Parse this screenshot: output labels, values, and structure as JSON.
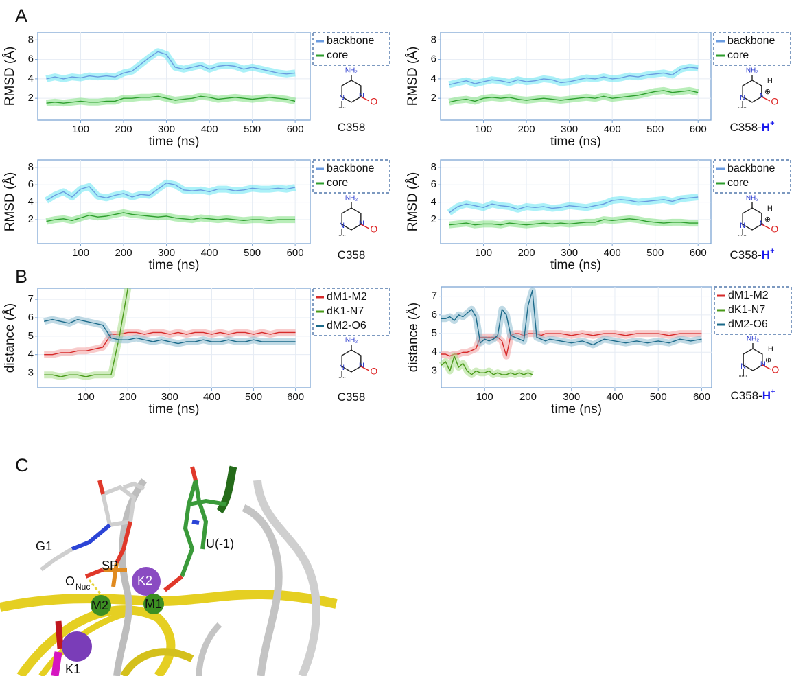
{
  "panels": [
    "A",
    "B"
  ],
  "chart_data": [
    {
      "type": "line",
      "ylabel": "RMSD (Å)",
      "xlabel": "time (ns)",
      "xlim": [
        0,
        635
      ],
      "ylim": [
        -0.25,
        8.8
      ],
      "xticks": [
        100,
        200,
        300,
        400,
        500,
        600
      ],
      "yticks": [
        2,
        4,
        6,
        8
      ],
      "grid": true,
      "structure_label": "C358",
      "amine": "NH₂",
      "nitrogen": "N",
      "oxygen": "O",
      "x": [
        20,
        40,
        60,
        80,
        100,
        120,
        140,
        160,
        180,
        200,
        220,
        240,
        260,
        280,
        300,
        320,
        340,
        360,
        380,
        400,
        420,
        440,
        460,
        480,
        500,
        520,
        540,
        560,
        580,
        600
      ],
      "series": [
        {
          "name": "backbone",
          "color": "#6a9be0",
          "band_color": "#66e6f2",
          "values": [
            4.0,
            4.2,
            4.0,
            4.2,
            4.1,
            4.3,
            4.2,
            4.3,
            4.2,
            4.6,
            4.8,
            5.5,
            6.2,
            6.8,
            6.5,
            5.2,
            5.0,
            5.2,
            5.4,
            5.0,
            5.3,
            5.4,
            5.3,
            5.0,
            5.2,
            5.0,
            4.8,
            4.6,
            4.5,
            4.6
          ]
        },
        {
          "name": "core",
          "color": "#2e9e2e",
          "band_color": "#7fe07f",
          "values": [
            1.5,
            1.6,
            1.5,
            1.6,
            1.7,
            1.6,
            1.6,
            1.7,
            1.7,
            2.0,
            2.0,
            2.1,
            2.1,
            2.2,
            2.0,
            1.8,
            1.9,
            2.0,
            2.2,
            2.1,
            1.9,
            2.0,
            2.1,
            2.0,
            1.9,
            2.0,
            2.1,
            2.0,
            1.9,
            1.7
          ]
        }
      ]
    },
    {
      "type": "line",
      "ylabel": "RMSD (Å)",
      "xlabel": "time (ns)",
      "xlim": [
        0,
        630
      ],
      "ylim": [
        -0.25,
        8.8
      ],
      "xticks": [
        100,
        200,
        300,
        400,
        500,
        600
      ],
      "yticks": [
        2,
        4,
        6,
        8
      ],
      "grid": true,
      "structure_label": "C358-",
      "protonation": "H",
      "protonation_sup": "+",
      "amine": "NH₂",
      "nitrogen": "N",
      "oxygen": "O",
      "proton": "H",
      "charge": "⊕",
      "x": [
        20,
        40,
        60,
        80,
        100,
        120,
        140,
        160,
        180,
        200,
        220,
        240,
        260,
        280,
        300,
        320,
        340,
        360,
        380,
        400,
        420,
        440,
        460,
        480,
        500,
        520,
        540,
        560,
        580,
        600
      ],
      "series": [
        {
          "name": "backbone",
          "color": "#6a9be0",
          "band_color": "#66e6f2",
          "values": [
            3.4,
            3.6,
            3.8,
            3.5,
            3.7,
            3.9,
            3.8,
            3.6,
            3.9,
            3.7,
            3.8,
            4.0,
            3.9,
            3.6,
            3.7,
            3.9,
            4.1,
            4.0,
            4.2,
            4.0,
            4.1,
            4.3,
            4.2,
            4.4,
            4.5,
            4.6,
            4.4,
            5.0,
            5.2,
            5.1
          ]
        },
        {
          "name": "core",
          "color": "#2e9e2e",
          "band_color": "#7fe07f",
          "values": [
            1.6,
            1.8,
            1.9,
            1.7,
            2.0,
            2.1,
            2.0,
            2.1,
            1.9,
            1.8,
            1.9,
            2.0,
            1.9,
            1.8,
            1.9,
            2.0,
            2.1,
            2.0,
            2.2,
            2.0,
            2.1,
            2.2,
            2.3,
            2.5,
            2.7,
            2.8,
            2.6,
            2.7,
            2.8,
            2.6
          ]
        }
      ]
    },
    {
      "type": "line",
      "ylabel": "RMSD (Å)",
      "xlabel": "time (ns)",
      "xlim": [
        0,
        635
      ],
      "ylim": [
        -0.75,
        8.85
      ],
      "xticks": [
        100,
        200,
        300,
        400,
        500,
        600
      ],
      "yticks": [
        2,
        4,
        6,
        8
      ],
      "grid": true,
      "structure_label": "C358",
      "amine": "NH₂",
      "nitrogen": "N",
      "oxygen": "O",
      "x": [
        20,
        40,
        60,
        80,
        100,
        120,
        140,
        160,
        180,
        200,
        220,
        240,
        260,
        280,
        300,
        320,
        340,
        360,
        380,
        400,
        420,
        440,
        460,
        480,
        500,
        520,
        540,
        560,
        580,
        600
      ],
      "series": [
        {
          "name": "backbone",
          "color": "#6a9be0",
          "band_color": "#66e6f2",
          "values": [
            4.2,
            4.8,
            5.2,
            4.6,
            5.5,
            5.8,
            4.7,
            4.5,
            4.8,
            5.0,
            4.6,
            4.9,
            4.8,
            5.5,
            6.2,
            6.0,
            5.4,
            5.3,
            5.4,
            5.2,
            5.5,
            5.5,
            5.3,
            5.4,
            5.6,
            5.5,
            5.5,
            5.6,
            5.5,
            5.7
          ]
        },
        {
          "name": "core",
          "color": "#2e9e2e",
          "band_color": "#7fe07f",
          "values": [
            1.8,
            2.0,
            2.1,
            1.9,
            2.2,
            2.5,
            2.3,
            2.4,
            2.6,
            2.8,
            2.6,
            2.5,
            2.4,
            2.3,
            2.4,
            2.2,
            2.1,
            2.0,
            2.2,
            2.1,
            2.0,
            2.1,
            2.0,
            1.9,
            2.0,
            2.0,
            1.9,
            2.0,
            2.0,
            2.0
          ]
        }
      ]
    },
    {
      "type": "line",
      "ylabel": "RMSD (Å)",
      "xlabel": "time (ns)",
      "xlim": [
        0,
        630
      ],
      "ylim": [
        -0.75,
        8.85
      ],
      "xticks": [
        100,
        200,
        300,
        400,
        500,
        600
      ],
      "yticks": [
        2,
        4,
        6,
        8
      ],
      "grid": true,
      "structure_label": "C358-",
      "protonation": "H",
      "protonation_sup": "+",
      "amine": "NH₂",
      "nitrogen": "N",
      "oxygen": "O",
      "proton": "H",
      "charge": "⊕",
      "x": [
        20,
        40,
        60,
        80,
        100,
        120,
        140,
        160,
        180,
        200,
        220,
        240,
        260,
        280,
        300,
        320,
        340,
        360,
        380,
        400,
        420,
        440,
        460,
        480,
        500,
        520,
        540,
        560,
        580,
        600
      ],
      "series": [
        {
          "name": "backbone",
          "color": "#6a9be0",
          "band_color": "#66e6f2",
          "values": [
            2.8,
            3.5,
            3.8,
            3.6,
            3.4,
            3.8,
            3.6,
            3.5,
            3.2,
            3.5,
            3.4,
            3.5,
            3.3,
            3.4,
            3.6,
            3.5,
            3.4,
            3.6,
            3.8,
            4.2,
            4.3,
            4.2,
            4.0,
            4.1,
            4.2,
            4.3,
            4.1,
            4.4,
            4.5,
            4.6
          ]
        },
        {
          "name": "core",
          "color": "#2e9e2e",
          "band_color": "#7fe07f",
          "values": [
            1.4,
            1.5,
            1.6,
            1.4,
            1.5,
            1.5,
            1.4,
            1.6,
            1.5,
            1.4,
            1.5,
            1.6,
            1.5,
            1.6,
            1.5,
            1.6,
            1.7,
            1.7,
            2.0,
            1.9,
            2.0,
            2.1,
            2.0,
            1.8,
            1.7,
            1.6,
            1.7,
            1.7,
            1.6,
            1.6
          ]
        }
      ]
    },
    {
      "type": "line",
      "ylabel": "distance (Å)",
      "xlabel": "time (ns)",
      "xlim": [
        -15,
        635
      ],
      "ylim": [
        2.2,
        7.6
      ],
      "xticks": [
        100,
        200,
        300,
        400,
        500,
        600
      ],
      "yticks": [
        3,
        4,
        5,
        6,
        7
      ],
      "grid": true,
      "structure_label": "C358",
      "amine": "NH₂",
      "nitrogen": "N",
      "oxygen": "O",
      "x": [
        0,
        20,
        40,
        60,
        80,
        100,
        120,
        140,
        160,
        180,
        200,
        220,
        240,
        260,
        280,
        300,
        320,
        340,
        360,
        380,
        400,
        420,
        440,
        460,
        480,
        500,
        520,
        540,
        560,
        580,
        600
      ],
      "series": [
        {
          "name": "dM1-M2",
          "color": "#d62a2a",
          "band_color": "#f2a0a0",
          "values": [
            4.0,
            4.0,
            4.1,
            4.1,
            4.2,
            4.2,
            4.3,
            4.4,
            5.1,
            5.1,
            5.2,
            5.2,
            5.1,
            5.2,
            5.2,
            5.1,
            5.2,
            5.1,
            5.2,
            5.2,
            5.1,
            5.2,
            5.1,
            5.2,
            5.2,
            5.1,
            5.2,
            5.1,
            5.2,
            5.2,
            5.2
          ]
        },
        {
          "name": "dK1-N7",
          "color": "#4a9a1a",
          "band_color": "#a8dc88",
          "values": [
            2.9,
            2.9,
            2.8,
            2.9,
            2.9,
            2.8,
            2.9,
            2.9,
            2.9,
            5.0,
            7.6,
            null,
            null,
            null,
            null,
            null,
            null,
            null,
            null,
            null,
            null,
            null,
            null,
            null,
            null,
            null,
            null,
            null,
            null,
            null,
            null
          ]
        },
        {
          "name": "dM2-O6",
          "color": "#1b6a8a",
          "band_color": "#8cbcd0",
          "values": [
            5.8,
            5.9,
            5.8,
            5.7,
            5.9,
            5.8,
            5.7,
            5.6,
            4.9,
            4.8,
            4.8,
            4.9,
            4.8,
            4.7,
            4.8,
            4.7,
            4.6,
            4.7,
            4.7,
            4.8,
            4.7,
            4.7,
            4.8,
            4.7,
            4.7,
            4.8,
            4.7,
            4.7,
            4.7,
            4.7,
            4.7
          ]
        }
      ]
    },
    {
      "type": "line",
      "ylabel": "distance (Å)",
      "xlabel": "time (ns)",
      "xlim": [
        0,
        623
      ],
      "ylim": [
        2.1,
        7.5
      ],
      "xticks": [
        100,
        200,
        300,
        400,
        500,
        600
      ],
      "yticks": [
        3,
        4,
        5,
        6,
        7
      ],
      "grid": true,
      "structure_label": "C358-",
      "protonation": "H",
      "protonation_sup": "+",
      "amine": "NH₂",
      "nitrogen": "N",
      "oxygen": "O",
      "proton": "H",
      "charge": "⊕",
      "x": [
        0,
        10,
        20,
        30,
        40,
        50,
        60,
        70,
        80,
        90,
        100,
        110,
        120,
        130,
        140,
        150,
        160,
        170,
        180,
        190,
        200,
        210,
        220,
        230,
        240,
        250,
        275,
        300,
        325,
        350,
        375,
        400,
        425,
        450,
        475,
        500,
        525,
        550,
        575,
        600
      ],
      "series": [
        {
          "name": "dM1-M2",
          "color": "#d62a2a",
          "band_color": "#f2a0a0",
          "values": [
            3.9,
            3.9,
            3.8,
            3.9,
            3.9,
            4.0,
            4.0,
            4.1,
            4.2,
            4.8,
            4.8,
            4.8,
            4.8,
            4.8,
            4.6,
            3.8,
            4.9,
            5.0,
            5.0,
            4.9,
            5.0,
            5.0,
            5.0,
            4.9,
            5.0,
            5.0,
            5.0,
            4.9,
            5.0,
            4.9,
            5.0,
            5.0,
            4.9,
            5.0,
            5.0,
            5.0,
            4.9,
            5.0,
            5.0,
            5.0
          ]
        },
        {
          "name": "dK1-N7",
          "color": "#4a9a1a",
          "band_color": "#a8dc88",
          "values": [
            3.3,
            3.5,
            3.0,
            3.8,
            3.2,
            3.4,
            3.0,
            2.8,
            3.0,
            2.9,
            2.9,
            3.0,
            2.8,
            2.9,
            2.8,
            2.8,
            2.9,
            2.8,
            2.9,
            2.8,
            2.9,
            2.8,
            null,
            null,
            null,
            null,
            null,
            null,
            null,
            null,
            null,
            null,
            null,
            null,
            null,
            null,
            null,
            null,
            null,
            null
          ]
        },
        {
          "name": "dM2-O6",
          "color": "#1b6a8a",
          "band_color": "#8cbcd0",
          "values": [
            5.8,
            5.8,
            5.9,
            5.7,
            6.0,
            5.9,
            6.1,
            6.3,
            5.9,
            4.5,
            4.7,
            4.6,
            4.7,
            4.9,
            6.3,
            6.0,
            4.9,
            4.8,
            4.7,
            4.6,
            6.5,
            7.3,
            4.8,
            4.7,
            4.6,
            4.7,
            4.6,
            4.5,
            4.6,
            4.4,
            4.7,
            4.6,
            4.5,
            4.6,
            4.5,
            4.6,
            4.5,
            4.7,
            4.6,
            4.7
          ]
        }
      ]
    }
  ],
  "panel_c": {
    "label": "C",
    "g1": "G1",
    "sp": "SP",
    "o": "O",
    "o_sub": "Nuc",
    "m2": "M2",
    "k2": "K2",
    "m1": "M1",
    "u": "U(-1)",
    "k1": "K1"
  }
}
